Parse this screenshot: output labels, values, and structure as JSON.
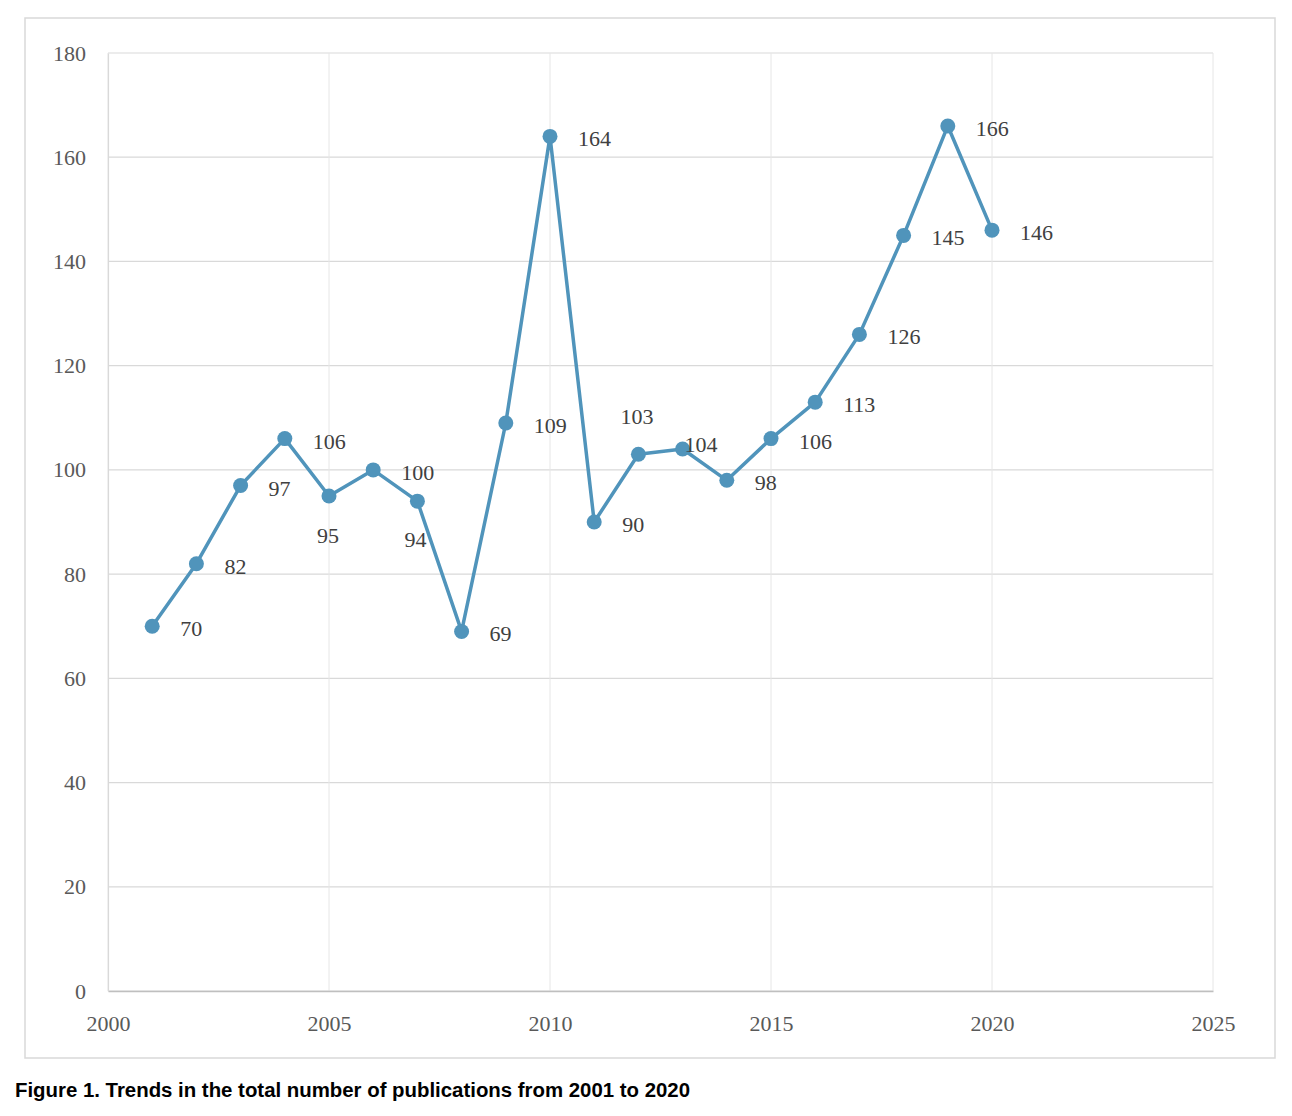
{
  "chart_data": {
    "type": "line",
    "title": "Figure 1. Trends in the total number of publications from 2001 to 2020",
    "x": [
      2001,
      2002,
      2003,
      2004,
      2005,
      2006,
      2007,
      2008,
      2009,
      2010,
      2011,
      2012,
      2013,
      2014,
      2015,
      2016,
      2017,
      2018,
      2019,
      2020
    ],
    "values": [
      70,
      82,
      97,
      106,
      95,
      100,
      94,
      69,
      109,
      164,
      90,
      103,
      104,
      98,
      106,
      113,
      126,
      145,
      166,
      146
    ],
    "color": "#5094bb",
    "marker": "circle",
    "data_labels": true,
    "xlim": [
      2000,
      2025
    ],
    "xticks": [
      2000,
      2005,
      2010,
      2015,
      2020,
      2025
    ],
    "ylim": [
      0,
      180
    ],
    "yticks": [
      0,
      20,
      40,
      60,
      80,
      100,
      120,
      140,
      160,
      180
    ],
    "grid": true
  }
}
